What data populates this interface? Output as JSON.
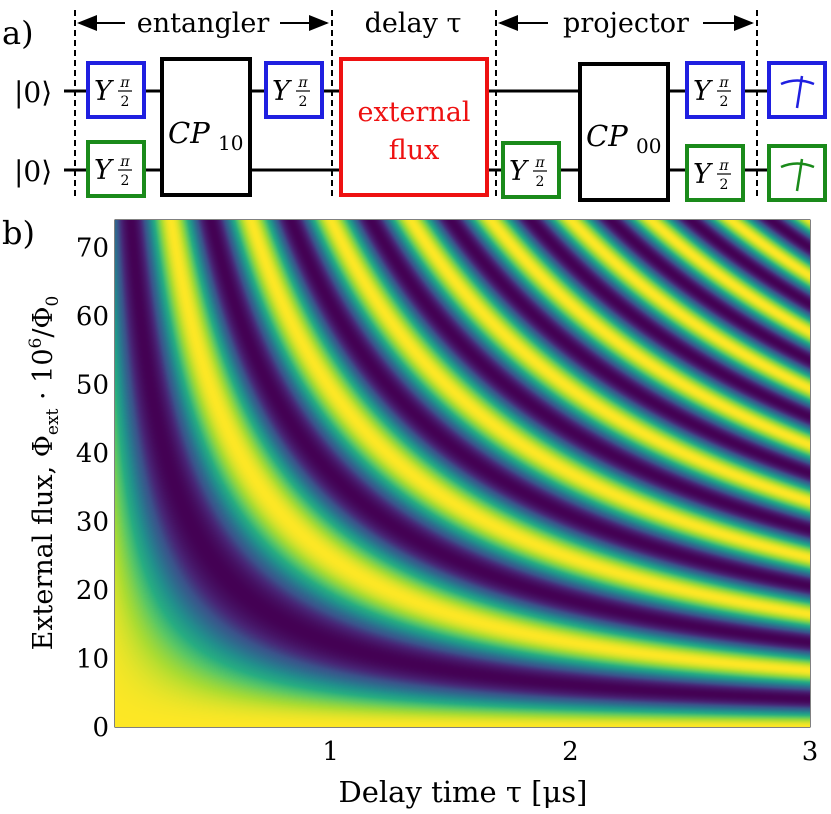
{
  "panel_a": {
    "label": "a)",
    "sections": {
      "entangler": "entangler",
      "delay": "delay τ",
      "projector": "projector"
    },
    "inputs": [
      "|0⟩",
      "|0⟩"
    ],
    "gates": {
      "y_pi2": "Y",
      "y_sub": "π",
      "y_sub_den": "2",
      "cp10_main": "CP",
      "cp10_sub": "10",
      "cp00_main": "CP",
      "cp00_sub": "00",
      "flux_line1": "external",
      "flux_line2": "flux"
    },
    "colors": {
      "qubit1": "#1f1fe0",
      "qubit2": "#1a8a1a",
      "flux": "#ee1111",
      "black": "#000000"
    }
  },
  "panel_b": {
    "label": "b)"
  },
  "chart_data": {
    "type": "heatmap",
    "xlabel": "Delay time τ [μs]",
    "ylabel_main": "External flux, Φ",
    "ylabel_sub": "ext",
    "ylabel_rest": " · 10",
    "ylabel_sup": "6",
    "ylabel_tail": "/Φ",
    "ylabel_tail_sub": "0",
    "xlim": [
      0.1,
      3
    ],
    "ylim": [
      0,
      74
    ],
    "x_ticks": [
      {
        "value": 1,
        "label": "1"
      },
      {
        "value": 2,
        "label": "2"
      },
      {
        "value": 3,
        "label": "3"
      }
    ],
    "y_ticks": [
      {
        "value": 0,
        "label": "0"
      },
      {
        "value": 10,
        "label": "10"
      },
      {
        "value": 20,
        "label": "20"
      },
      {
        "value": 30,
        "label": "30"
      },
      {
        "value": 40,
        "label": "40"
      },
      {
        "value": 50,
        "label": "50"
      },
      {
        "value": 60,
        "label": "60"
      },
      {
        "value": 70,
        "label": "70"
      }
    ],
    "colormap": "viridis",
    "pattern": "cos(k · flux · τ)",
    "fringe_constant": 0.0405
  }
}
